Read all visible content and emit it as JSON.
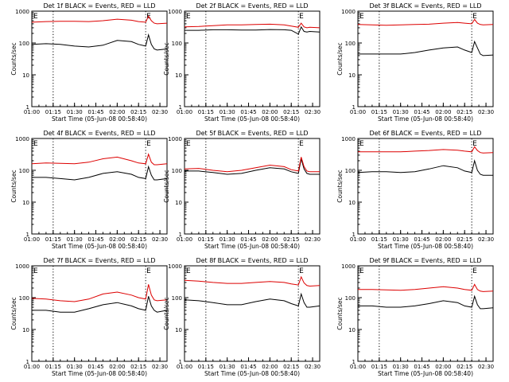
{
  "colors": {
    "events": "#000000",
    "lld": "#dd0000",
    "axis": "#000000",
    "background": "#ffffff"
  },
  "shared": {
    "ylabel": "Counts/sec",
    "xlabel": "Start Time (05-Jun-08 00:58:40)",
    "x_ticks": [
      "01:00",
      "01:15",
      "01:30",
      "01:45",
      "02:00",
      "02:15",
      "02:30"
    ],
    "y_ticks": [
      "1",
      "10",
      "100",
      "1000"
    ],
    "marker_text": "E"
  },
  "chart_data": [
    {
      "type": "line",
      "title": "Det 1f BLACK = Events, RED = LLD",
      "y_scale": "log",
      "ylim": [
        1,
        1000
      ],
      "xlim": [
        "01:00",
        "02:35"
      ],
      "grid": false,
      "markers": [
        "01:15",
        "02:20"
      ],
      "series": [
        {
          "name": "Events",
          "color": "#000000",
          "x": [
            "01:00",
            "01:10",
            "01:20",
            "01:30",
            "01:40",
            "01:50",
            "02:00",
            "02:10",
            "02:15",
            "02:20",
            "02:22",
            "02:24",
            "02:26",
            "02:28",
            "02:35"
          ],
          "y": [
            90,
            95,
            90,
            80,
            75,
            85,
            120,
            110,
            90,
            80,
            180,
            90,
            65,
            60,
            65
          ]
        },
        {
          "name": "LLD",
          "color": "#dd0000",
          "x": [
            "01:00",
            "01:10",
            "01:20",
            "01:30",
            "01:40",
            "01:50",
            "02:00",
            "02:10",
            "02:15",
            "02:20",
            "02:22",
            "02:24",
            "02:26",
            "02:28",
            "02:35"
          ],
          "y": [
            450,
            470,
            480,
            480,
            470,
            500,
            560,
            520,
            470,
            450,
            700,
            500,
            420,
            400,
            420
          ]
        }
      ]
    },
    {
      "type": "line",
      "title": "Det 2f BLACK = Events, RED = LLD",
      "y_scale": "log",
      "ylim": [
        1,
        1000
      ],
      "xlim": [
        "01:00",
        "02:35"
      ],
      "grid": false,
      "markers": [
        "01:15",
        "02:20"
      ],
      "series": [
        {
          "name": "Events",
          "color": "#000000",
          "x": [
            "01:00",
            "01:10",
            "01:20",
            "01:30",
            "01:40",
            "01:50",
            "02:00",
            "02:10",
            "02:15",
            "02:20",
            "02:22",
            "02:24",
            "02:26",
            "02:28",
            "02:35"
          ],
          "y": [
            250,
            250,
            260,
            260,
            255,
            255,
            265,
            260,
            250,
            190,
            320,
            230,
            220,
            230,
            220
          ]
        },
        {
          "name": "LLD",
          "color": "#dd0000",
          "x": [
            "01:00",
            "01:10",
            "01:20",
            "01:30",
            "01:40",
            "01:50",
            "02:00",
            "02:10",
            "02:15",
            "02:20",
            "02:22",
            "02:24",
            "02:26",
            "02:28",
            "02:35"
          ],
          "y": [
            320,
            330,
            350,
            370,
            370,
            380,
            390,
            370,
            340,
            310,
            420,
            320,
            300,
            310,
            300
          ]
        }
      ]
    },
    {
      "type": "line",
      "title": "Det 3f BLACK = Events, RED = LLD",
      "y_scale": "log",
      "ylim": [
        1,
        1000
      ],
      "xlim": [
        "01:00",
        "02:35"
      ],
      "grid": false,
      "markers": [
        "01:15",
        "02:20"
      ],
      "series": [
        {
          "name": "Events",
          "color": "#000000",
          "x": [
            "01:00",
            "01:10",
            "01:20",
            "01:30",
            "01:40",
            "01:50",
            "02:00",
            "02:10",
            "02:15",
            "02:20",
            "02:22",
            "02:24",
            "02:26",
            "02:28",
            "02:35"
          ],
          "y": [
            45,
            45,
            45,
            45,
            50,
            60,
            70,
            75,
            60,
            50,
            110,
            70,
            45,
            40,
            42
          ]
        },
        {
          "name": "LLD",
          "color": "#dd0000",
          "x": [
            "01:00",
            "01:10",
            "01:20",
            "01:30",
            "01:40",
            "01:50",
            "02:00",
            "02:10",
            "02:15",
            "02:20",
            "02:22",
            "02:24",
            "02:26",
            "02:28",
            "02:35"
          ],
          "y": [
            380,
            370,
            360,
            370,
            380,
            390,
            420,
            440,
            420,
            400,
            550,
            420,
            380,
            370,
            380
          ]
        }
      ]
    },
    {
      "type": "line",
      "title": "Det 4f BLACK = Events, RED = LLD",
      "y_scale": "log",
      "ylim": [
        1,
        1000
      ],
      "xlim": [
        "01:00",
        "02:35"
      ],
      "grid": false,
      "markers": [
        "01:15",
        "02:20"
      ],
      "series": [
        {
          "name": "Events",
          "color": "#000000",
          "x": [
            "01:00",
            "01:10",
            "01:20",
            "01:30",
            "01:40",
            "01:50",
            "02:00",
            "02:10",
            "02:15",
            "02:20",
            "02:22",
            "02:24",
            "02:26",
            "02:28",
            "02:35"
          ],
          "y": [
            60,
            60,
            55,
            50,
            60,
            80,
            90,
            75,
            60,
            55,
            130,
            70,
            50,
            50,
            55
          ]
        },
        {
          "name": "LLD",
          "color": "#dd0000",
          "x": [
            "01:00",
            "01:10",
            "01:20",
            "01:30",
            "01:40",
            "01:50",
            "02:00",
            "02:10",
            "02:15",
            "02:20",
            "02:22",
            "02:24",
            "02:26",
            "02:28",
            "02:35"
          ],
          "y": [
            160,
            170,
            165,
            160,
            180,
            230,
            260,
            200,
            170,
            160,
            320,
            180,
            150,
            150,
            160
          ]
        }
      ]
    },
    {
      "type": "line",
      "title": "Det 5f BLACK = Events, RED = LLD",
      "y_scale": "log",
      "ylim": [
        1,
        1000
      ],
      "xlim": [
        "01:00",
        "02:35"
      ],
      "grid": false,
      "markers": [
        "01:15",
        "02:20"
      ],
      "series": [
        {
          "name": "Events",
          "color": "#000000",
          "x": [
            "01:00",
            "01:10",
            "01:20",
            "01:30",
            "01:40",
            "01:50",
            "02:00",
            "02:10",
            "02:15",
            "02:20",
            "02:22",
            "02:24",
            "02:26",
            "02:28",
            "02:35"
          ],
          "y": [
            95,
            95,
            85,
            75,
            80,
            100,
            120,
            110,
            90,
            80,
            230,
            110,
            80,
            75,
            75
          ]
        },
        {
          "name": "LLD",
          "color": "#dd0000",
          "x": [
            "01:00",
            "01:10",
            "01:20",
            "01:30",
            "01:40",
            "01:50",
            "02:00",
            "02:10",
            "02:15",
            "02:20",
            "02:22",
            "02:24",
            "02:26",
            "02:28",
            "02:35"
          ],
          "y": [
            110,
            115,
            100,
            90,
            100,
            120,
            145,
            130,
            105,
            95,
            260,
            130,
            95,
            90,
            90
          ]
        }
      ]
    },
    {
      "type": "line",
      "title": "Det 6f BLACK = Events, RED = LLD",
      "y_scale": "log",
      "ylim": [
        1,
        1000
      ],
      "xlim": [
        "01:00",
        "02:35"
      ],
      "grid": false,
      "markers": [
        "01:15",
        "02:20"
      ],
      "series": [
        {
          "name": "Events",
          "color": "#000000",
          "x": [
            "01:00",
            "01:10",
            "01:20",
            "01:30",
            "01:40",
            "01:50",
            "02:00",
            "02:10",
            "02:15",
            "02:20",
            "02:22",
            "02:24",
            "02:26",
            "02:28",
            "02:35"
          ],
          "y": [
            85,
            90,
            90,
            85,
            90,
            110,
            140,
            120,
            95,
            85,
            200,
            100,
            75,
            70,
            70
          ]
        },
        {
          "name": "LLD",
          "color": "#dd0000",
          "x": [
            "01:00",
            "01:10",
            "01:20",
            "01:30",
            "01:40",
            "01:50",
            "02:00",
            "02:10",
            "02:15",
            "02:20",
            "02:22",
            "02:24",
            "02:26",
            "02:28",
            "02:35"
          ],
          "y": [
            380,
            380,
            380,
            380,
            400,
            420,
            450,
            430,
            400,
            380,
            550,
            420,
            360,
            350,
            360
          ]
        }
      ]
    },
    {
      "type": "line",
      "title": "Det 7f BLACK = Events, RED = LLD",
      "y_scale": "log",
      "ylim": [
        1,
        1000
      ],
      "xlim": [
        "01:00",
        "02:35"
      ],
      "grid": false,
      "markers": [
        "01:15",
        "02:20"
      ],
      "series": [
        {
          "name": "Events",
          "color": "#000000",
          "x": [
            "01:00",
            "01:10",
            "01:20",
            "01:30",
            "01:40",
            "01:50",
            "02:00",
            "02:10",
            "02:15",
            "02:20",
            "02:22",
            "02:24",
            "02:26",
            "02:28",
            "02:35"
          ],
          "y": [
            40,
            40,
            35,
            35,
            45,
            60,
            70,
            55,
            45,
            40,
            110,
            55,
            40,
            35,
            40
          ]
        },
        {
          "name": "LLD",
          "color": "#dd0000",
          "x": [
            "01:00",
            "01:10",
            "01:20",
            "01:30",
            "01:40",
            "01:50",
            "02:00",
            "02:10",
            "02:15",
            "02:20",
            "02:22",
            "02:24",
            "02:26",
            "02:28",
            "02:35"
          ],
          "y": [
            95,
            90,
            80,
            75,
            90,
            130,
            150,
            120,
            100,
            90,
            260,
            120,
            85,
            80,
            85
          ]
        }
      ]
    },
    {
      "type": "line",
      "title": "Det 8f BLACK = Events, RED = LLD",
      "y_scale": "log",
      "ylim": [
        1,
        1000
      ],
      "xlim": [
        "01:00",
        "02:35"
      ],
      "grid": false,
      "markers": [
        "01:15",
        "02:20"
      ],
      "series": [
        {
          "name": "Events",
          "color": "#000000",
          "x": [
            "01:00",
            "01:10",
            "01:20",
            "01:30",
            "01:40",
            "01:50",
            "02:00",
            "02:10",
            "02:15",
            "02:20",
            "02:22",
            "02:24",
            "02:26",
            "02:28",
            "02:35"
          ],
          "y": [
            85,
            80,
            70,
            60,
            60,
            75,
            90,
            80,
            65,
            55,
            130,
            70,
            50,
            50,
            55
          ]
        },
        {
          "name": "LLD",
          "color": "#dd0000",
          "x": [
            "01:00",
            "01:10",
            "01:20",
            "01:30",
            "01:40",
            "01:50",
            "02:00",
            "02:10",
            "02:15",
            "02:20",
            "02:22",
            "02:24",
            "02:26",
            "02:28",
            "02:35"
          ],
          "y": [
            350,
            330,
            300,
            280,
            280,
            300,
            320,
            300,
            270,
            250,
            450,
            290,
            240,
            230,
            240
          ]
        }
      ]
    },
    {
      "type": "line",
      "title": "Det 9f BLACK = Events, RED = LLD",
      "y_scale": "log",
      "ylim": [
        1,
        1000
      ],
      "xlim": [
        "01:00",
        "02:35"
      ],
      "grid": false,
      "markers": [
        "01:15",
        "02:20"
      ],
      "series": [
        {
          "name": "Events",
          "color": "#000000",
          "x": [
            "01:00",
            "01:10",
            "01:20",
            "01:30",
            "01:40",
            "01:50",
            "02:00",
            "02:10",
            "02:15",
            "02:20",
            "02:22",
            "02:24",
            "02:26",
            "02:28",
            "02:35"
          ],
          "y": [
            55,
            55,
            50,
            50,
            55,
            65,
            80,
            70,
            55,
            50,
            110,
            60,
            45,
            45,
            48
          ]
        },
        {
          "name": "LLD",
          "color": "#dd0000",
          "x": [
            "01:00",
            "01:10",
            "01:20",
            "01:30",
            "01:40",
            "01:50",
            "02:00",
            "02:10",
            "02:15",
            "02:20",
            "02:22",
            "02:24",
            "02:26",
            "02:28",
            "02:35"
          ],
          "y": [
            180,
            180,
            175,
            170,
            180,
            200,
            220,
            200,
            180,
            170,
            260,
            180,
            160,
            155,
            160
          ]
        }
      ]
    }
  ]
}
